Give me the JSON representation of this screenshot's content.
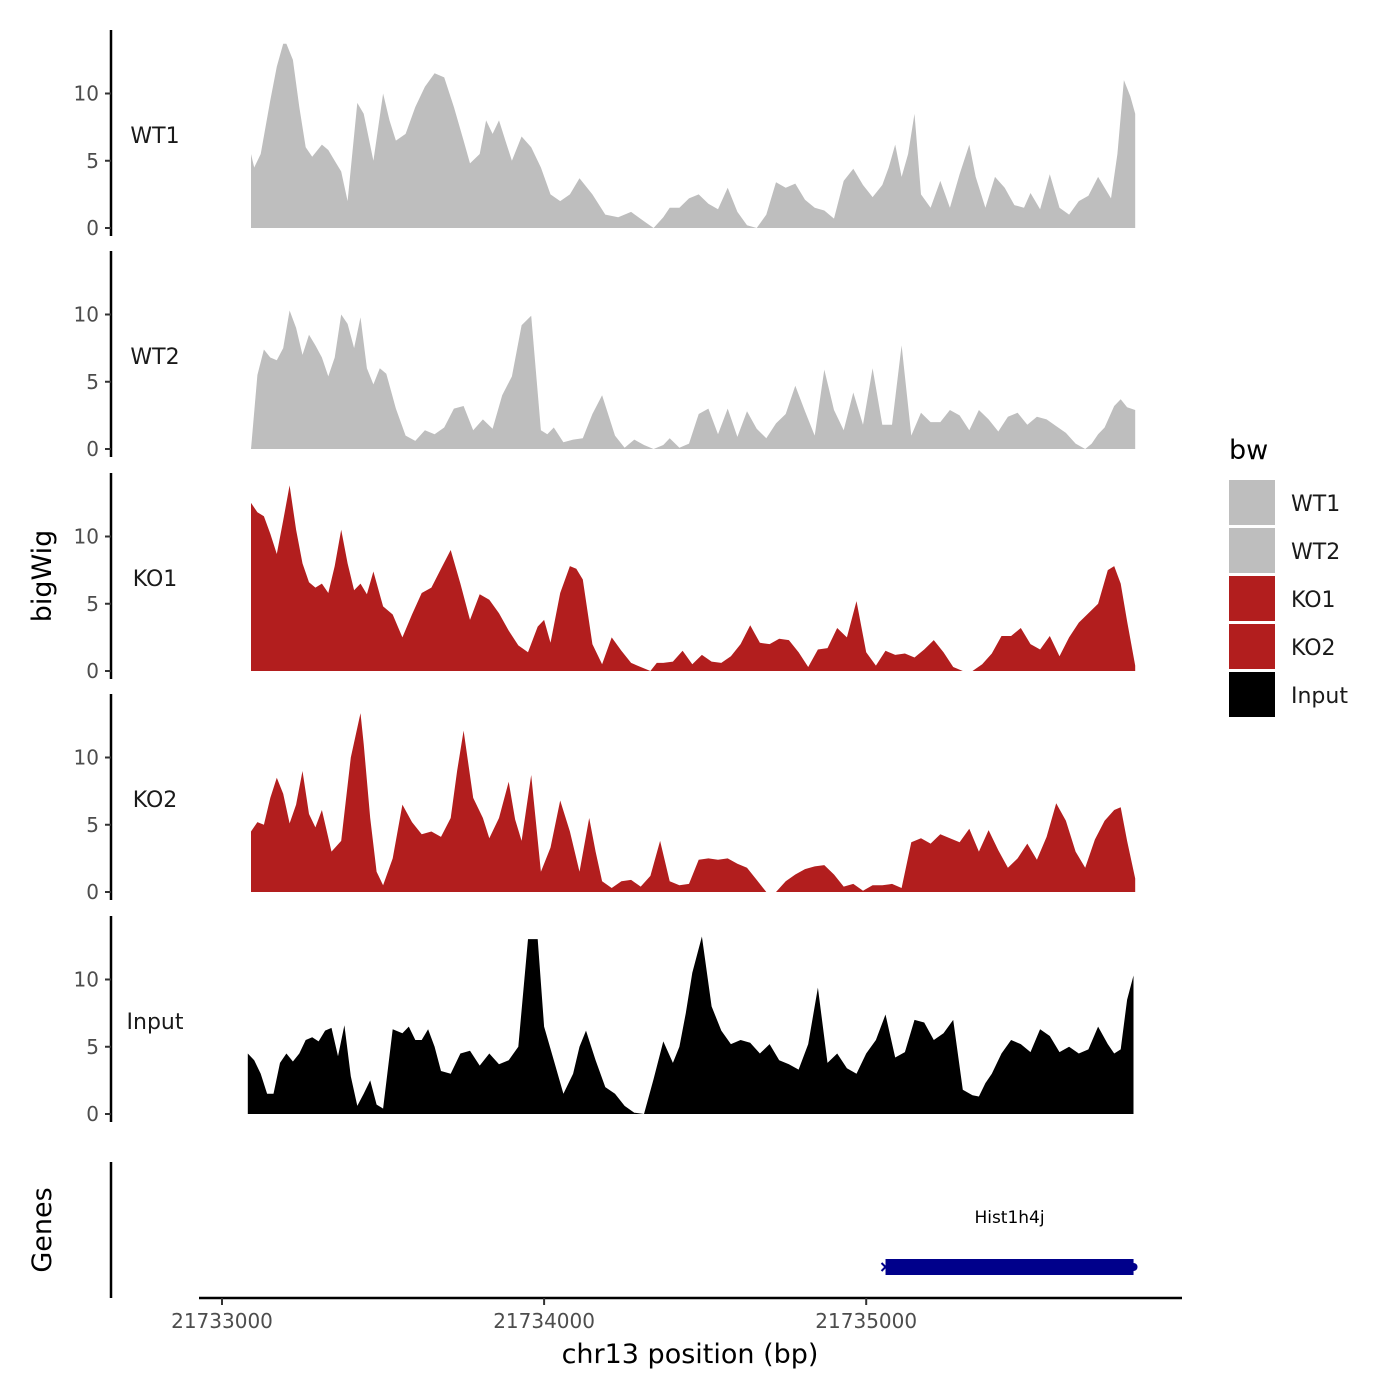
{
  "chart_data": {
    "type": "area",
    "title": "",
    "xlabel": "chr13 position (bp)",
    "ylabel": "bigWig",
    "genes_label": "Genes",
    "xlim": [
      21732930,
      21735960
    ],
    "x_ticks": [
      21733000,
      21734000,
      21735000
    ],
    "x_tick_labels": [
      "21733000",
      "21734000",
      "21735000"
    ],
    "ylim": [
      0,
      14.5
    ],
    "y_ticks": [
      0,
      5,
      10
    ],
    "y_tick_labels": [
      "0",
      "5",
      "10"
    ],
    "legend": {
      "title": "bw",
      "position": "right",
      "entries": [
        {
          "label": "WT1",
          "color": "#bebebe"
        },
        {
          "label": "WT2",
          "color": "#bebebe"
        },
        {
          "label": "KO1",
          "color": "#b21e1e"
        },
        {
          "label": "KO2",
          "color": "#b21e1e"
        },
        {
          "label": "Input",
          "color": "#000000"
        }
      ]
    },
    "series": [
      {
        "name": "WT1",
        "color": "#bebebe",
        "x": [
          21733090,
          21733100,
          21733120,
          21733150,
          21733170,
          21733190,
          21733200,
          21733220,
          21733240,
          21733260,
          21733280,
          21733310,
          21733330,
          21733350,
          21733370,
          21733390,
          21733420,
          21733440,
          21733470,
          21733500,
          21733520,
          21733540,
          21733570,
          21733600,
          21733630,
          21733660,
          21733690,
          21733720,
          21733750,
          21733770,
          21733800,
          21733820,
          21733840,
          21733860,
          21733880,
          21733900,
          21733930,
          21733960,
          21733990,
          21734020,
          21734050,
          21734080,
          21734110,
          21734150,
          21734190,
          21734230,
          21734270,
          21734310,
          21734340,
          21734370,
          21734390,
          21734420,
          21734450,
          21734480,
          21734510,
          21734540,
          21734570,
          21734600,
          21734630,
          21734660,
          21734690,
          21734720,
          21734750,
          21734780,
          21734810,
          21734840,
          21734870,
          21734900,
          21734930,
          21734960,
          21734990,
          21735020,
          21735050,
          21735070,
          21735090,
          21735110,
          21735130,
          21735150,
          21735170,
          21735200,
          21735230,
          21735260,
          21735290,
          21735320,
          21735340,
          21735370,
          21735400,
          21735430,
          21735460,
          21735490,
          21735510,
          21735540,
          21735570,
          21735600,
          21735630,
          21735660,
          21735690,
          21735720,
          21735740,
          21735760,
          21735780,
          21735800,
          21735820,
          21735835,
          21735835
        ],
        "y": [
          5.5,
          4.5,
          5.5,
          9.5,
          12,
          13.7,
          13.7,
          12.5,
          9,
          6,
          5.3,
          6.2,
          5.8,
          5,
          4.2,
          2,
          9.3,
          8.5,
          5,
          10,
          8,
          6.5,
          7,
          9,
          10.5,
          11.5,
          11.2,
          9,
          6.5,
          4.8,
          5.5,
          8,
          7,
          8,
          6.5,
          5,
          6.8,
          6,
          4.5,
          2.5,
          2,
          2.5,
          3.7,
          2.5,
          1,
          0.8,
          1.2,
          0.5,
          -0.1,
          0.8,
          1.5,
          1.5,
          2.2,
          2.5,
          1.8,
          1.4,
          3,
          1.2,
          0.2,
          -0.1,
          1,
          3.4,
          3.0,
          3.3,
          2.1,
          1.5,
          1.3,
          0.7,
          3.5,
          4.4,
          3.2,
          2.3,
          3.2,
          4.5,
          6.2,
          3.8,
          5.5,
          8.5,
          2.5,
          1.5,
          3.5,
          1.5,
          4,
          6.2,
          3.8,
          1.5,
          3.8,
          3.0,
          1.7,
          1.5,
          2.6,
          1.4,
          4,
          1.5,
          1.0,
          2.0,
          2.4,
          3.8,
          3.0,
          2.2,
          5.5,
          11,
          9.8,
          8.5,
          0
        ]
      },
      {
        "name": "WT2",
        "color": "#bebebe",
        "x": [
          21733090,
          21733110,
          21733130,
          21733150,
          21733170,
          21733190,
          21733210,
          21733230,
          21733250,
          21733270,
          21733290,
          21733310,
          21733330,
          21733350,
          21733370,
          21733390,
          21733410,
          21733430,
          21733450,
          21733470,
          21733490,
          21733510,
          21733540,
          21733570,
          21733600,
          21733630,
          21733660,
          21733690,
          21733720,
          21733750,
          21733780,
          21733810,
          21733840,
          21733870,
          21733900,
          21733930,
          21733960,
          21733990,
          21734010,
          21734030,
          21734060,
          21734090,
          21734120,
          21734150,
          21734180,
          21734220,
          21734250,
          21734280,
          21734310,
          21734340,
          21734370,
          21734390,
          21734420,
          21734450,
          21734480,
          21734510,
          21734540,
          21734570,
          21734600,
          21734630,
          21734660,
          21734690,
          21734720,
          21734750,
          21734780,
          21734810,
          21734840,
          21734870,
          21734900,
          21734930,
          21734960,
          21734990,
          21735020,
          21735050,
          21735080,
          21735110,
          21735140,
          21735170,
          21735200,
          21735230,
          21735260,
          21735290,
          21735320,
          21735350,
          21735380,
          21735410,
          21735440,
          21735470,
          21735500,
          21735530,
          21735560,
          21735590,
          21735620,
          21735650,
          21735680,
          21735700,
          21735720,
          21735740,
          21735770,
          21735790,
          21735810,
          21735835,
          21735835
        ],
        "y": [
          0,
          5.5,
          7.4,
          6.8,
          6.6,
          7.5,
          10.3,
          9.0,
          7.0,
          8.5,
          7.7,
          6.8,
          5.4,
          6.8,
          10,
          9.3,
          7.5,
          9.8,
          6.0,
          4.8,
          6.0,
          5.6,
          3.0,
          1.0,
          0.6,
          1.4,
          1.1,
          1.6,
          3.0,
          3.2,
          1.4,
          2.2,
          1.5,
          4.0,
          5.4,
          9.2,
          9.9,
          1.4,
          1.1,
          1.6,
          0.5,
          0.7,
          0.8,
          2.6,
          4.0,
          1.0,
          0.1,
          0.7,
          0.3,
          -0.1,
          0.3,
          0.8,
          0.1,
          0.4,
          2.6,
          3.0,
          1.1,
          3.0,
          0.9,
          2.8,
          1.5,
          0.8,
          1.9,
          2.6,
          4.7,
          2.8,
          1.0,
          5.9,
          2.9,
          1.4,
          4.2,
          1.8,
          6.0,
          1.8,
          1.8,
          7.7,
          1.0,
          2.7,
          2.0,
          2.0,
          2.9,
          2.5,
          1.4,
          2.9,
          2.2,
          1.3,
          2.4,
          2.7,
          1.8,
          2.4,
          2.2,
          1.7,
          1.2,
          0.4,
          -0.2,
          0.4,
          1.1,
          1.6,
          3.2,
          3.7,
          3.1,
          2.9,
          0
        ]
      },
      {
        "name": "KO1",
        "color": "#b21e1e",
        "x": [
          21733090,
          21733110,
          21733130,
          21733150,
          21733170,
          21733190,
          21733210,
          21733230,
          21733250,
          21733270,
          21733290,
          21733310,
          21733330,
          21733350,
          21733370,
          21733390,
          21733410,
          21733430,
          21733450,
          21733470,
          21733500,
          21733530,
          21733560,
          21733590,
          21733620,
          21733650,
          21733680,
          21733710,
          21733740,
          21733770,
          21733800,
          21733830,
          21733860,
          21733890,
          21733920,
          21733950,
          21733980,
          21734000,
          21734020,
          21734050,
          21734080,
          21734100,
          21734120,
          21734150,
          21734180,
          21734210,
          21734240,
          21734270,
          21734300,
          21734330,
          21734350,
          21734370,
          21734400,
          21734430,
          21734460,
          21734490,
          21734520,
          21734550,
          21734580,
          21734610,
          21734640,
          21734670,
          21734700,
          21734730,
          21734760,
          21734790,
          21734820,
          21734850,
          21734880,
          21734910,
          21734940,
          21734970,
          21735000,
          21735030,
          21735060,
          21735090,
          21735120,
          21735150,
          21735180,
          21735210,
          21735240,
          21735270,
          21735300,
          21735330,
          21735360,
          21735390,
          21735420,
          21735450,
          21735480,
          21735510,
          21735540,
          21735570,
          21735600,
          21735630,
          21735660,
          21735690,
          21735720,
          21735750,
          21735770,
          21735790,
          21735810,
          21735835,
          21735835
        ],
        "y": [
          12.5,
          11.8,
          11.5,
          10.2,
          8.7,
          11.2,
          13.8,
          10.5,
          8.0,
          6.6,
          6.2,
          6.5,
          5.8,
          7.8,
          10.5,
          8.0,
          6.0,
          6.5,
          5.7,
          7.4,
          4.8,
          4.2,
          2.5,
          4.2,
          5.8,
          6.2,
          7.6,
          9.0,
          6.5,
          3.8,
          5.7,
          5.3,
          4.3,
          3.0,
          1.9,
          1.4,
          3.3,
          3.8,
          2.1,
          5.8,
          7.8,
          7.6,
          6.8,
          2.0,
          0.5,
          2.5,
          1.5,
          0.6,
          0.3,
          -0.2,
          0.6,
          0.6,
          0.7,
          1.5,
          0.5,
          1.2,
          0.7,
          0.6,
          1.1,
          2.0,
          3.4,
          2.1,
          2.0,
          2.4,
          2.3,
          1.4,
          0.3,
          1.6,
          1.7,
          3.2,
          2.5,
          5.2,
          1.4,
          0.4,
          1.5,
          1.2,
          1.3,
          1.0,
          1.6,
          2.3,
          1.4,
          0.3,
          -0.5,
          -0.5,
          0.5,
          1.3,
          2.6,
          2.6,
          3.2,
          2.0,
          1.6,
          2.6,
          1.1,
          2.5,
          3.6,
          4.3,
          5.0,
          7.5,
          7.8,
          6.5,
          3.7,
          0.4,
          0
        ]
      },
      {
        "name": "KO2",
        "color": "#b21e1e",
        "x": [
          21733090,
          21733110,
          21733130,
          21733150,
          21733170,
          21733190,
          21733210,
          21733230,
          21733250,
          21733270,
          21733290,
          21733310,
          21733340,
          21733370,
          21733400,
          21733430,
          21733440,
          21733460,
          21733480,
          21733500,
          21733530,
          21733560,
          21733590,
          21733620,
          21733650,
          21733680,
          21733710,
          21733730,
          21733750,
          21733780,
          21733810,
          21733830,
          21733860,
          21733890,
          21733910,
          21733930,
          21733960,
          21733990,
          21734020,
          21734050,
          21734080,
          21734110,
          21734140,
          21734160,
          21734180,
          21734210,
          21734240,
          21734270,
          21734300,
          21734330,
          21734360,
          21734390,
          21734420,
          21734450,
          21734480,
          21734510,
          21734540,
          21734570,
          21734600,
          21734630,
          21734660,
          21734690,
          21734720,
          21734750,
          21734780,
          21734810,
          21734840,
          21734870,
          21734900,
          21734930,
          21734960,
          21734990,
          21735020,
          21735050,
          21735080,
          21735110,
          21735140,
          21735170,
          21735200,
          21735230,
          21735260,
          21735290,
          21735320,
          21735350,
          21735380,
          21735410,
          21735440,
          21735470,
          21735500,
          21735530,
          21735560,
          21735590,
          21735620,
          21735650,
          21735680,
          21735710,
          21735740,
          21735770,
          21735790,
          21735810,
          21735835,
          21735835
        ],
        "y": [
          4.5,
          5.2,
          5.0,
          7.0,
          8.5,
          7.3,
          5.1,
          6.5,
          9.0,
          5.8,
          4.8,
          6.1,
          3.0,
          3.8,
          10.0,
          13.3,
          11.0,
          5.5,
          1.5,
          0.5,
          2.5,
          6.5,
          5.2,
          4.3,
          4.5,
          4.1,
          5.5,
          9.0,
          12.0,
          7.0,
          5.5,
          4.0,
          5.5,
          8.2,
          5.4,
          3.8,
          8.7,
          1.5,
          3.3,
          6.8,
          4.5,
          1.5,
          5.5,
          3.0,
          0.8,
          0.3,
          0.8,
          0.9,
          0.4,
          1.2,
          3.8,
          0.8,
          0.5,
          0.6,
          2.4,
          2.5,
          2.4,
          2.5,
          2.1,
          1.8,
          0.9,
          -0.5,
          -0.5,
          0.8,
          1.3,
          1.7,
          1.9,
          2.0,
          1.3,
          0.4,
          0.6,
          0.1,
          0.5,
          0.5,
          0.6,
          0.3,
          3.7,
          4.0,
          3.6,
          4.3,
          4.0,
          3.7,
          4.7,
          3.0,
          4.6,
          3.1,
          1.8,
          2.5,
          3.6,
          2.4,
          4.1,
          6.6,
          5.3,
          3.0,
          1.8,
          3.9,
          5.3,
          6.1,
          6.3,
          3.8,
          1.0,
          0
        ]
      },
      {
        "name": "Input",
        "color": "#000000",
        "x": [
          21733080,
          21733100,
          21733120,
          21733140,
          21733160,
          21733180,
          21733200,
          21733220,
          21733240,
          21733260,
          21733280,
          21733300,
          21733320,
          21733340,
          21733360,
          21733380,
          21733400,
          21733420,
          21733440,
          21733460,
          21733480,
          21733500,
          21733530,
          21733560,
          21733580,
          21733600,
          21733620,
          21733640,
          21733660,
          21733680,
          21733710,
          21733740,
          21733770,
          21733800,
          21733830,
          21733860,
          21733890,
          21733920,
          21733950,
          21733980,
          21734000,
          21734030,
          21734060,
          21734090,
          21734110,
          21734130,
          21734160,
          21734190,
          21734220,
          21734250,
          21734280,
          21734310,
          21734340,
          21734370,
          21734400,
          21734420,
          21734440,
          21734460,
          21734490,
          21734520,
          21734550,
          21734580,
          21734610,
          21734640,
          21734670,
          21734700,
          21734730,
          21734760,
          21734790,
          21734820,
          21734850,
          21734880,
          21734910,
          21734940,
          21734970,
          21735000,
          21735030,
          21735060,
          21735090,
          21735120,
          21735150,
          21735180,
          21735210,
          21735240,
          21735270,
          21735300,
          21735330,
          21735350,
          21735370,
          21735390,
          21735420,
          21735450,
          21735480,
          21735510,
          21735540,
          21735570,
          21735600,
          21735630,
          21735660,
          21735690,
          21735720,
          21735750,
          21735770,
          21735790,
          21735810,
          21735830,
          21735830
        ],
        "y": [
          4.5,
          4.0,
          3.0,
          1.5,
          1.5,
          3.8,
          4.5,
          3.9,
          4.5,
          5.5,
          5.7,
          5.4,
          6.2,
          6.4,
          4.3,
          6.6,
          2.8,
          0.6,
          1.5,
          2.5,
          0.7,
          0.4,
          6.3,
          6.0,
          6.5,
          5.5,
          5.5,
          6.3,
          5.0,
          3.2,
          3.0,
          4.5,
          4.7,
          3.6,
          4.5,
          3.7,
          4.0,
          5.0,
          13.0,
          13.0,
          6.5,
          4.0,
          1.5,
          3.0,
          5.0,
          6.2,
          4.0,
          2.0,
          1.5,
          0.6,
          0.1,
          -0.3,
          2.6,
          5.4,
          3.8,
          5.0,
          7.5,
          10.5,
          13.2,
          8.0,
          6.2,
          5.2,
          5.5,
          5.3,
          4.5,
          5.2,
          4.0,
          3.7,
          3.3,
          5.2,
          9.4,
          3.8,
          4.5,
          3.4,
          3.0,
          4.5,
          5.5,
          7.4,
          4.2,
          4.6,
          7.0,
          6.8,
          5.5,
          6.0,
          7.0,
          1.8,
          1.4,
          1.3,
          2.3,
          3.0,
          4.5,
          5.5,
          5.2,
          4.6,
          6.3,
          5.8,
          4.6,
          5.0,
          4.5,
          4.8,
          6.5,
          5.2,
          4.5,
          4.8,
          8.5,
          10.3,
          0
        ]
      }
    ],
    "genes": [
      {
        "name": "Hist1h4j",
        "start": 21735060,
        "end": 21735830,
        "strand": "-",
        "color": "#00008b"
      }
    ]
  }
}
